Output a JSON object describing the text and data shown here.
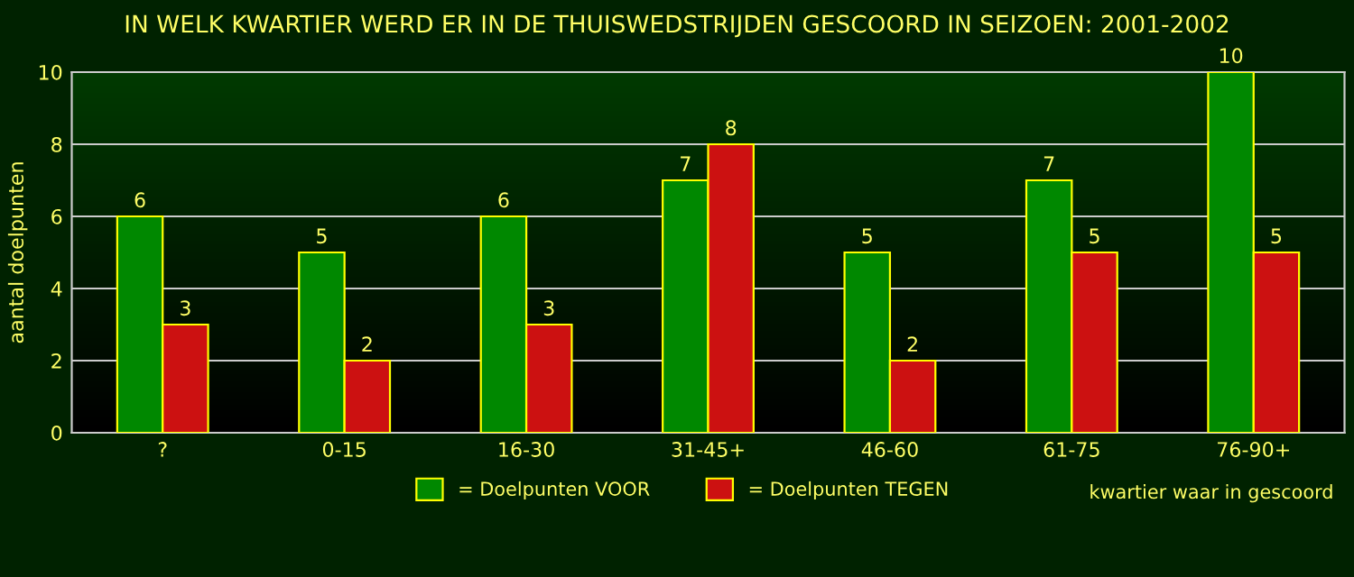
{
  "chart_data": {
    "type": "bar",
    "title": "IN WELK KWARTIER WERD ER IN DE THUISWEDSTRIJDEN GESCOORD IN SEIZOEN: 2001-2002",
    "categories": [
      "?",
      "0-15",
      "16-30",
      "31-45+",
      "46-60",
      "61-75",
      "76-90+"
    ],
    "series": [
      {
        "name": "= Doelpunten VOOR",
        "color": "#008800",
        "values": [
          6,
          5,
          6,
          7,
          5,
          7,
          10
        ]
      },
      {
        "name": "= Doelpunten TEGEN",
        "color": "#cc1111",
        "values": [
          3,
          2,
          3,
          8,
          2,
          5,
          5
        ]
      }
    ],
    "xlabel": "kwartier waar in gescoord",
    "ylabel": "aantal doelpunten",
    "ylim": [
      0,
      10
    ],
    "yticks": [
      0,
      2,
      4,
      6,
      8,
      10
    ],
    "grid": "y",
    "legend": "bottom",
    "data_labels": true
  }
}
